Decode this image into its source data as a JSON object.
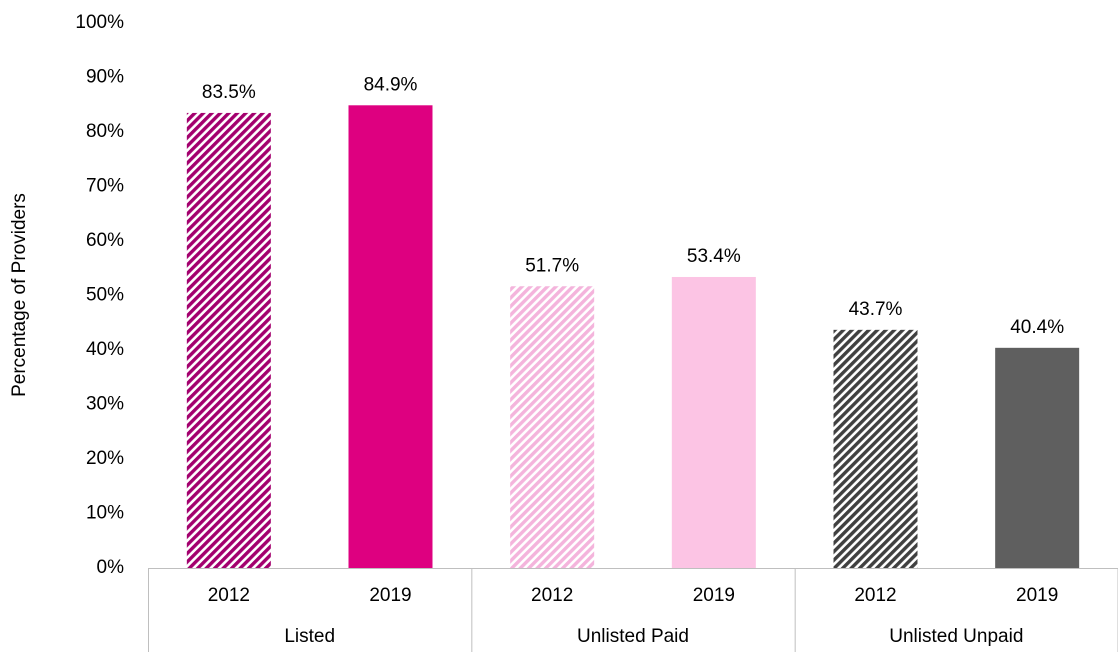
{
  "chart_data": {
    "type": "bar",
    "y_label": "Percentage of Providers",
    "categories": [
      "Listed",
      "Unlisted Paid",
      "Unlisted Unpaid"
    ],
    "series": [
      {
        "name": "2012",
        "hatched": true,
        "colors": [
          "#a3006e",
          "#f4b4dc",
          "#404040"
        ],
        "values": [
          83.5,
          51.7,
          43.7
        ],
        "value_labels": [
          "83.5%",
          "51.7%",
          "43.7%"
        ]
      },
      {
        "name": "2019",
        "hatched": false,
        "colors": [
          "#de0080",
          "#fcc4e4",
          "#5f5f5f"
        ],
        "values": [
          84.9,
          53.4,
          40.4
        ],
        "value_labels": [
          "84.9%",
          "53.4%",
          "40.4%"
        ]
      }
    ],
    "ylim": [
      0,
      100
    ],
    "yticks": [
      {
        "value": 0,
        "label": "0%"
      },
      {
        "value": 10,
        "label": "10%"
      },
      {
        "value": 20,
        "label": "20%"
      },
      {
        "value": 30,
        "label": "30%"
      },
      {
        "value": 40,
        "label": "40%"
      },
      {
        "value": 50,
        "label": "50%"
      },
      {
        "value": 60,
        "label": "60%"
      },
      {
        "value": 70,
        "label": "70%"
      },
      {
        "value": 80,
        "label": "80%"
      },
      {
        "value": 90,
        "label": "90%"
      },
      {
        "value": 100,
        "label": "100%"
      }
    ],
    "grid": false
  }
}
